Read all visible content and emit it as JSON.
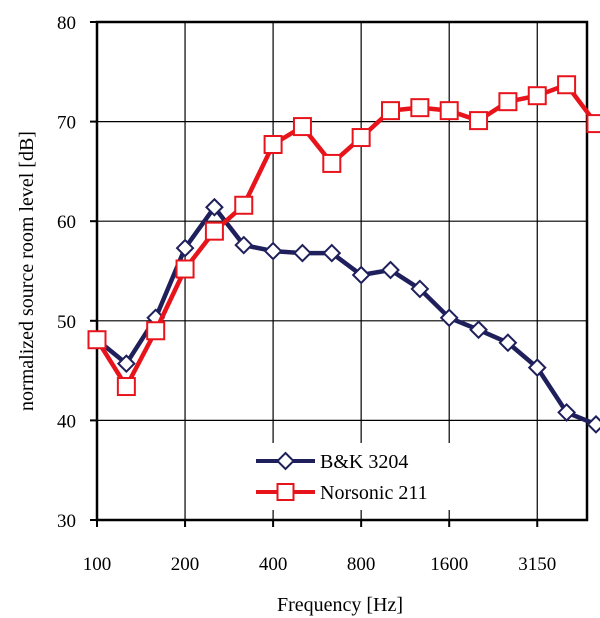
{
  "chart_data": {
    "type": "line",
    "xlabel": "Frequency [Hz]",
    "ylabel": "normalized source room level [dB]",
    "ylim": [
      30,
      80
    ],
    "y_ticks": [
      30,
      40,
      50,
      60,
      70,
      80
    ],
    "x_tick_labels": [
      "100",
      "200",
      "400",
      "800",
      "1600",
      "3150"
    ],
    "x": [
      100,
      125,
      160,
      200,
      250,
      315,
      400,
      500,
      630,
      800,
      1000,
      1250,
      1600,
      2000,
      2500,
      3150,
      4000,
      5000
    ],
    "grid": true,
    "legend_position": "bottom-center",
    "series": [
      {
        "name": "B&K 3204",
        "color": "#1f1f5c",
        "marker": "diamond",
        "values": [
          48.1,
          45.7,
          50.3,
          57.3,
          61.4,
          57.6,
          57.0,
          56.8,
          56.8,
          54.6,
          55.1,
          53.2,
          50.3,
          49.1,
          47.8,
          45.3,
          40.8,
          39.6
        ]
      },
      {
        "name": "Norsonic 211",
        "color": "#e8141c",
        "marker": "square",
        "values": [
          48.1,
          43.4,
          49.0,
          55.2,
          59.0,
          61.6,
          67.7,
          69.5,
          65.8,
          68.4,
          71.1,
          71.4,
          71.1,
          70.1,
          72.0,
          72.6,
          73.7,
          69.8
        ]
      }
    ]
  }
}
